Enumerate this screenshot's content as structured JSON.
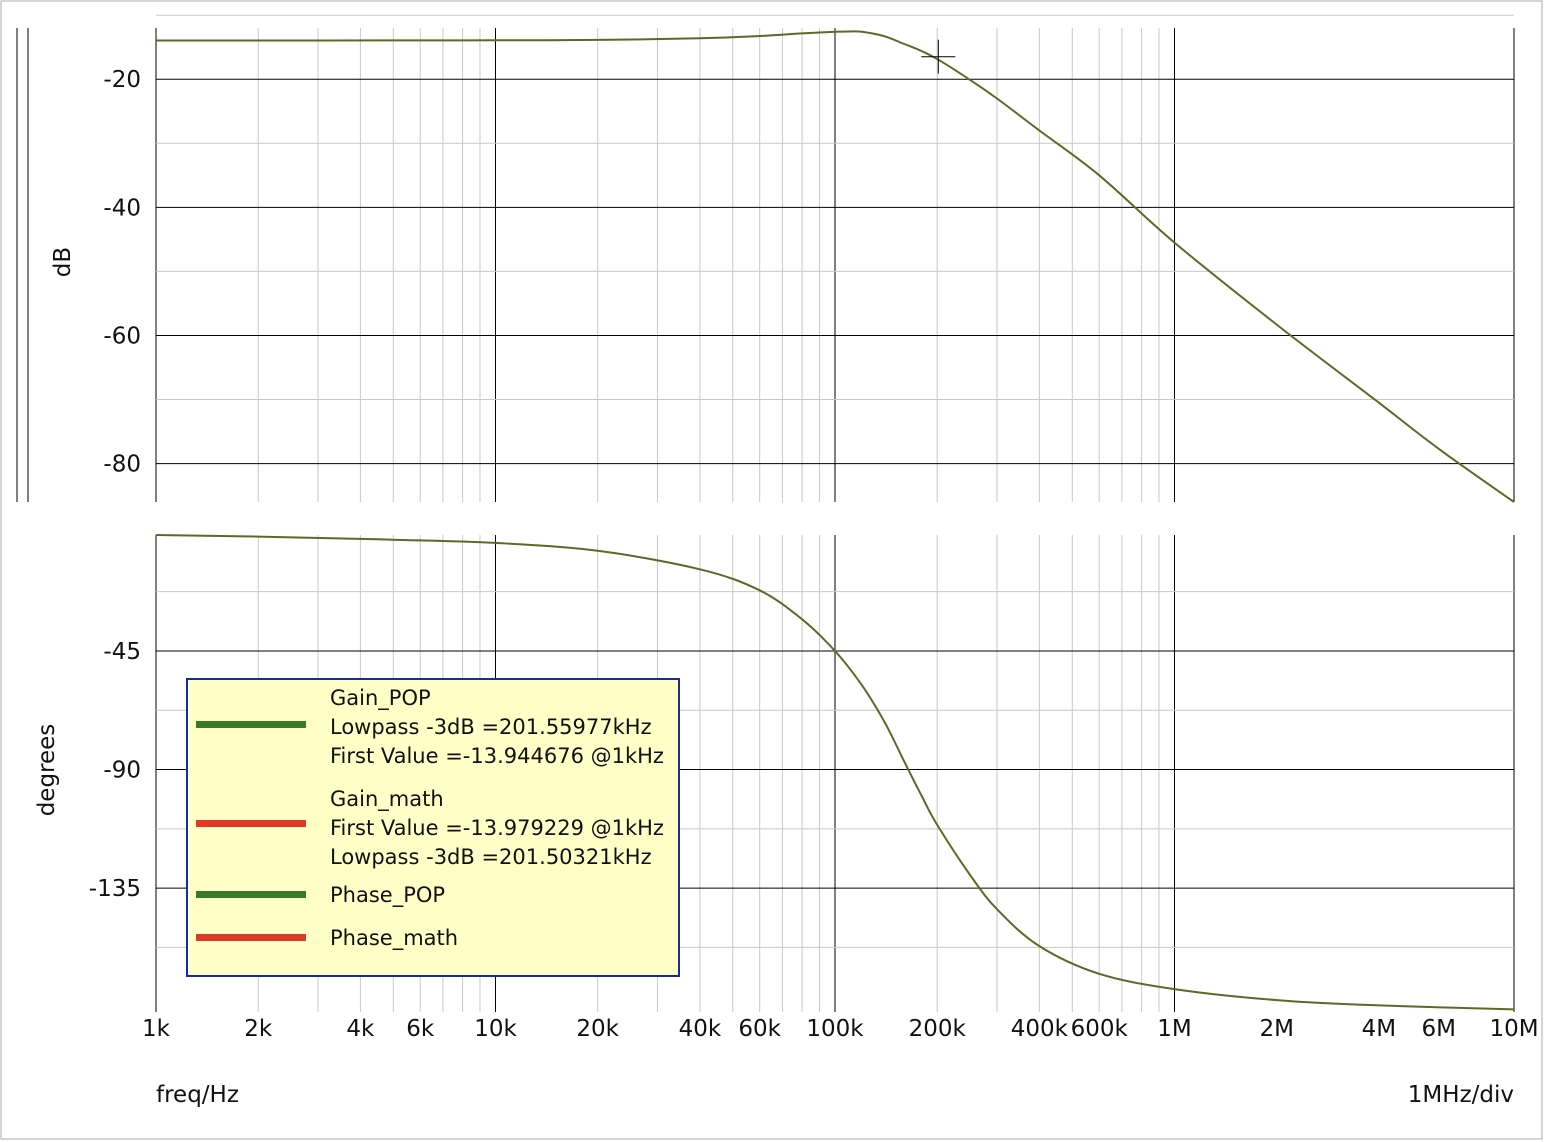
{
  "chart_data": [
    {
      "type": "line",
      "panel": "gain",
      "ylabel": "dB",
      "x_scale": "log",
      "xlim": [
        1000,
        10000000
      ],
      "ylim": [
        -86,
        -12
      ],
      "yticks": [
        -20,
        -40,
        -60,
        -80
      ],
      "ytick_labels": [
        "-20",
        "-40",
        "-60",
        "-80"
      ],
      "grid": true,
      "cursor": {
        "x": 201500,
        "y": -16.95
      },
      "series": [
        {
          "name": "Gain_POP",
          "x": [
            1000,
            2000,
            5000,
            10000,
            20000,
            40000,
            60000,
            80000,
            100000,
            110000,
            120000,
            140000,
            160000,
            180000,
            201500,
            250000,
            300000,
            400000,
            600000,
            1000000,
            2000000,
            4000000,
            6000000,
            10000000
          ],
          "values": [
            -13.95,
            -13.95,
            -13.94,
            -13.92,
            -13.86,
            -13.6,
            -13.25,
            -12.85,
            -12.6,
            -12.55,
            -12.6,
            -13.3,
            -14.5,
            -15.6,
            -16.95,
            -20.1,
            -23.0,
            -28.0,
            -35.0,
            -45.5,
            -58.3,
            -70.5,
            -77.7,
            -86.0
          ]
        }
      ]
    },
    {
      "type": "line",
      "panel": "phase",
      "ylabel": "degrees",
      "x_scale": "log",
      "xlim": [
        1000,
        10000000
      ],
      "ylim": [
        -182,
        -1
      ],
      "yticks": [
        -45,
        -90,
        -135
      ],
      "ytick_labels": [
        "-45",
        "-90",
        "-135"
      ],
      "xtick_values": [
        1000,
        2000,
        4000,
        6000,
        10000,
        20000,
        40000,
        60000,
        100000,
        200000,
        400000,
        600000,
        1000000,
        2000000,
        4000000,
        6000000,
        10000000
      ],
      "xtick_labels": [
        "1k",
        "2k",
        "4k",
        "6k",
        "10k",
        "20k",
        "40k",
        "60k",
        "100k",
        "200k",
        "400k",
        "600k",
        "1M",
        "2M",
        "4M",
        "6M",
        "10M"
      ],
      "xlabel": "freq/Hz",
      "x_div_label": "1MHz/div",
      "grid": true,
      "series": [
        {
          "name": "Phase_POP",
          "x": [
            1000,
            2000,
            5000,
            10000,
            20000,
            40000,
            60000,
            80000,
            100000,
            120000,
            140000,
            160000,
            180000,
            200000,
            250000,
            300000,
            400000,
            600000,
            1000000,
            2000000,
            4000000,
            10000000
          ],
          "values": [
            -1.0,
            -1.6,
            -2.8,
            -4.0,
            -7.0,
            -14.0,
            -22.0,
            -33.0,
            -45.0,
            -58.0,
            -72.0,
            -87.0,
            -100.0,
            -111.0,
            -130.0,
            -143.0,
            -157.0,
            -167.5,
            -173.3,
            -177.5,
            -179.5,
            -181.0
          ]
        }
      ]
    }
  ],
  "legend": {
    "entries": [
      {
        "color": "#3a7a26",
        "lines": [
          "Gain_POP",
          "Lowpass -3dB =201.55977kHz",
          "First Value =-13.944676 @1kHz"
        ]
      },
      {
        "color": "#e03a26",
        "lines": [
          "Gain_math",
          "First Value =-13.979229 @1kHz",
          "Lowpass -3dB =201.50321kHz"
        ]
      },
      {
        "color": "#3a7a26",
        "lines": [
          "Phase_POP"
        ]
      },
      {
        "color": "#e03a26",
        "lines": [
          "Phase_math"
        ]
      }
    ]
  },
  "colors": {
    "curve": "#5b6a26",
    "grid_major": "#000000",
    "grid_minor": "#c8c8c8",
    "legend_bg": "#ffffc8",
    "legend_border": "#1c2a9c"
  }
}
